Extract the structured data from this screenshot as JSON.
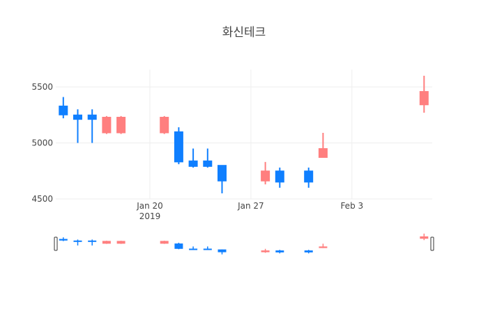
{
  "chart_data": {
    "type": "candlestick",
    "title": "화신테크",
    "xlabel": "",
    "ylabel": "",
    "ylim": [
      4500,
      5680
    ],
    "yticks": [
      4500,
      5000,
      5500
    ],
    "xticks": [
      {
        "date": "2019-01-20",
        "label": "Jan 20",
        "sublabel": "2019"
      },
      {
        "date": "2019-01-27",
        "label": "Jan 27",
        "sublabel": ""
      },
      {
        "date": "2019-02-03",
        "label": "Feb 3",
        "sublabel": ""
      }
    ],
    "grid": true,
    "legend": false,
    "increasing_color": "#FF7F7F",
    "decreasing_color": "#0F7FFF",
    "rangeslider": true,
    "candles": [
      {
        "date": "2019-01-14",
        "open": 5330,
        "high": 5410,
        "low": 5220,
        "close": 5250
      },
      {
        "date": "2019-01-15",
        "open": 5250,
        "high": 5300,
        "low": 5000,
        "close": 5210
      },
      {
        "date": "2019-01-16",
        "open": 5250,
        "high": 5300,
        "low": 5000,
        "close": 5210
      },
      {
        "date": "2019-01-17",
        "open": 5090,
        "high": 5240,
        "low": 5080,
        "close": 5230
      },
      {
        "date": "2019-01-18",
        "open": 5090,
        "high": 5240,
        "low": 5080,
        "close": 5230
      },
      {
        "date": "2019-01-21",
        "open": 5090,
        "high": 5240,
        "low": 5080,
        "close": 5230
      },
      {
        "date": "2019-01-22",
        "open": 5100,
        "high": 5140,
        "low": 4810,
        "close": 4830
      },
      {
        "date": "2019-01-23",
        "open": 4840,
        "high": 4950,
        "low": 4780,
        "close": 4790
      },
      {
        "date": "2019-01-24",
        "open": 4840,
        "high": 4950,
        "low": 4780,
        "close": 4790
      },
      {
        "date": "2019-01-25",
        "open": 4800,
        "high": 4800,
        "low": 4550,
        "close": 4660
      },
      {
        "date": "2019-01-28",
        "open": 4660,
        "high": 4830,
        "low": 4630,
        "close": 4750
      },
      {
        "date": "2019-01-29",
        "open": 4750,
        "high": 4780,
        "low": 4600,
        "close": 4650
      },
      {
        "date": "2019-01-31",
        "open": 4750,
        "high": 4780,
        "low": 4600,
        "close": 4650
      },
      {
        "date": "2019-02-01",
        "open": 4870,
        "high": 5090,
        "low": 4870,
        "close": 4950
      },
      {
        "date": "2019-02-08",
        "open": 5340,
        "high": 5600,
        "low": 5270,
        "close": 5460
      }
    ]
  }
}
